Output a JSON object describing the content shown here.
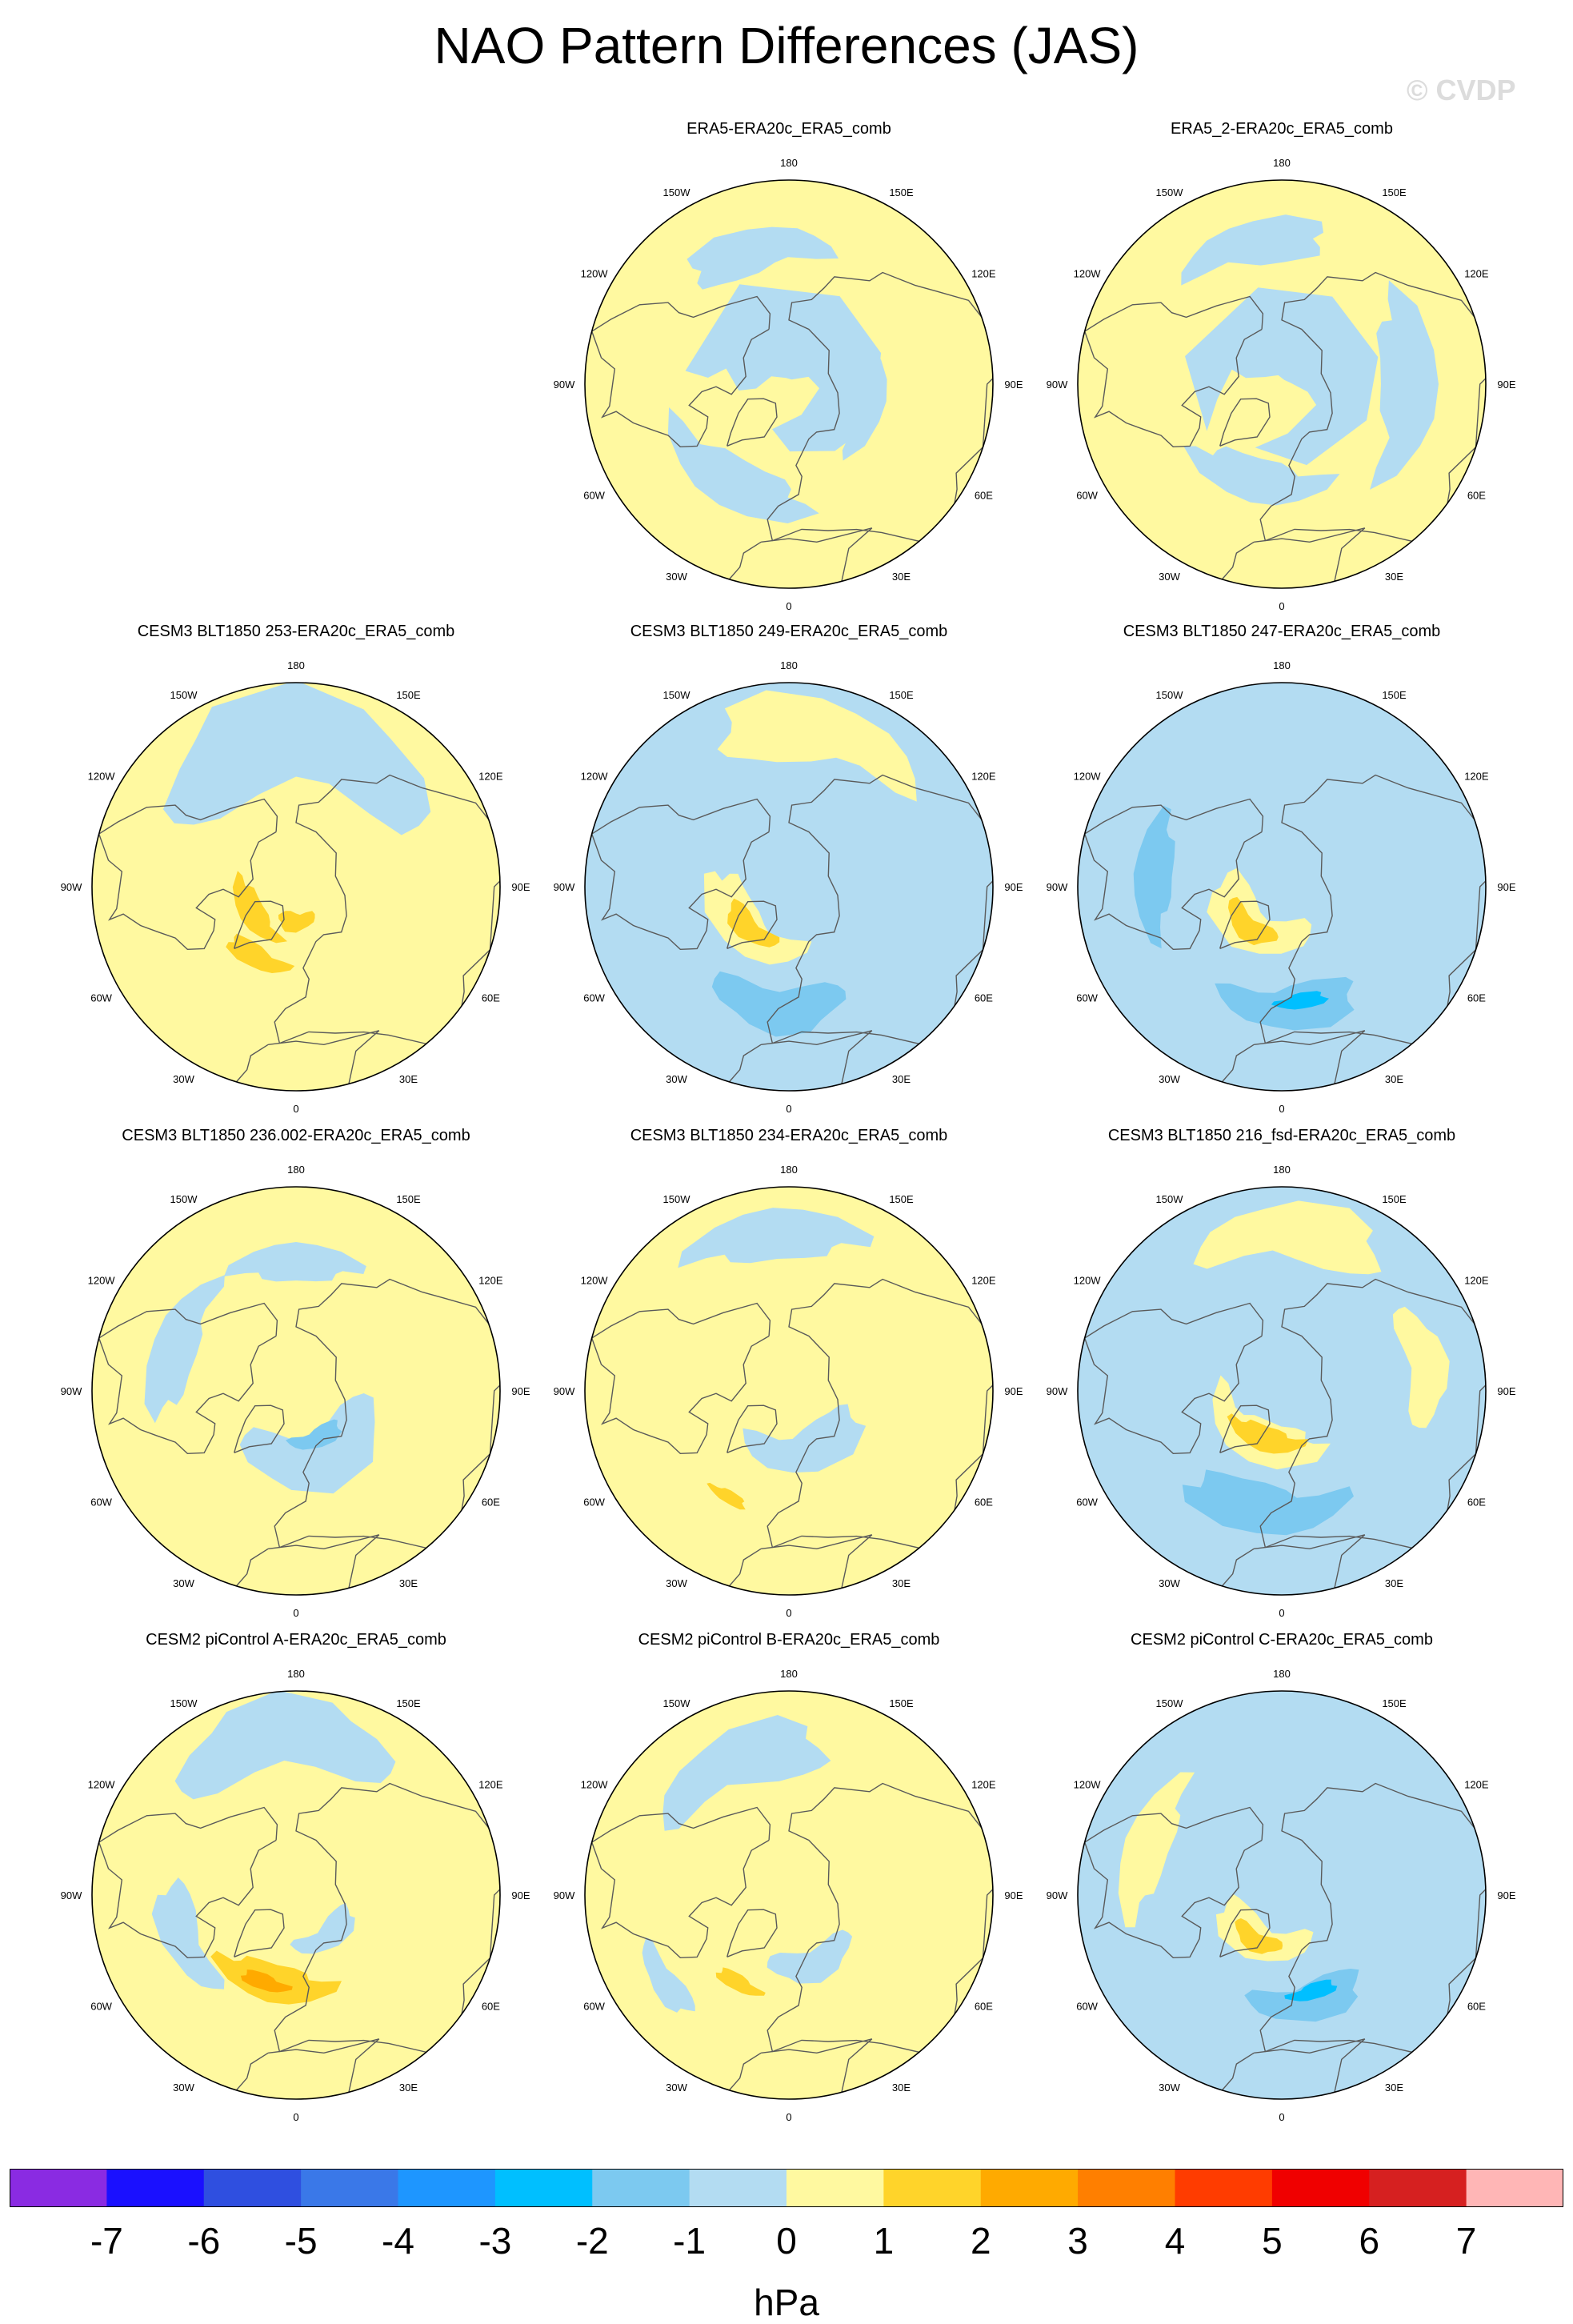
{
  "figure": {
    "title": "NAO Pattern Differences (JAS)",
    "watermark": "© CVDP"
  },
  "colors": {
    "land_outline": "#5a5a5a",
    "ocean_blank": "#ffffff",
    "neg_neutral": "#b3dcf2",
    "pos_neutral": "#fff9a0"
  },
  "panels": [
    {
      "id": "era5",
      "title": "ERA5-ERA20c_ERA5_comb",
      "row": 0,
      "col": 1,
      "dominant": "mixed",
      "blobs": [
        {
          "sign": "neg",
          "level": 1,
          "lat": 42,
          "lon": 195,
          "r": 14
        },
        {
          "sign": "neg",
          "level": 1,
          "lat": 50,
          "lon": 330,
          "r": 16
        },
        {
          "sign": "neg",
          "level": 1,
          "lat": 62,
          "lon": 80,
          "r": 12
        }
      ]
    },
    {
      "id": "era5_2",
      "title": "ERA5_2-ERA20c_ERA5_comb",
      "row": 0,
      "col": 2,
      "dominant": "mixed",
      "blobs": [
        {
          "sign": "neg",
          "level": 1,
          "lat": 45,
          "lon": 90,
          "r": 18
        },
        {
          "sign": "neg",
          "level": 1,
          "lat": 55,
          "lon": 345,
          "r": 14
        },
        {
          "sign": "neg",
          "level": 1,
          "lat": 40,
          "lon": 190,
          "r": 14
        }
      ]
    },
    {
      "id": "b253",
      "title": "CESM3 BLT1850 253-ERA20c_ERA5_comb",
      "row": 1,
      "col": 0,
      "dominant": "pos",
      "blobs": [
        {
          "sign": "pos",
          "level": 2,
          "lat": 72,
          "lon": 300,
          "r": 8
        },
        {
          "sign": "pos",
          "level": 2,
          "lat": 62,
          "lon": 330,
          "r": 7
        },
        {
          "sign": "pos",
          "level": 2,
          "lat": 78,
          "lon": 0,
          "r": 6
        },
        {
          "sign": "neg",
          "level": 1,
          "lat": 40,
          "lon": 180,
          "r": 30
        }
      ]
    },
    {
      "id": "b249",
      "title": "CESM3 BLT1850 249-ERA20c_ERA5_comb",
      "row": 1,
      "col": 1,
      "dominant": "neg",
      "blobs": [
        {
          "sign": "pos",
          "level": 1,
          "lat": 68,
          "lon": 310,
          "r": 14
        },
        {
          "sign": "pos",
          "level": 2,
          "lat": 70,
          "lon": 315,
          "r": 7
        },
        {
          "sign": "neg",
          "level": 2,
          "lat": 48,
          "lon": 355,
          "r": 14
        },
        {
          "sign": "pos",
          "level": 1,
          "lat": 35,
          "lon": 170,
          "r": 20
        }
      ]
    },
    {
      "id": "b247",
      "title": "CESM3 BLT1850 247-ERA20c_ERA5_comb",
      "row": 1,
      "col": 2,
      "dominant": "neg",
      "blobs": [
        {
          "sign": "pos",
          "level": 1,
          "lat": 72,
          "lon": 320,
          "r": 14
        },
        {
          "sign": "pos",
          "level": 2,
          "lat": 72,
          "lon": 320,
          "r": 7
        },
        {
          "sign": "neg",
          "level": 2,
          "lat": 48,
          "lon": 5,
          "r": 14
        },
        {
          "sign": "neg",
          "level": 3,
          "lat": 50,
          "lon": 10,
          "r": 5
        },
        {
          "sign": "neg",
          "level": 2,
          "lat": 45,
          "lon": 265,
          "r": 12
        }
      ]
    },
    {
      "id": "b236",
      "title": "CESM3 BLT1850 236.002-ERA20c_ERA5_comb",
      "row": 2,
      "col": 0,
      "dominant": "pos",
      "blobs": [
        {
          "sign": "neg",
          "level": 1,
          "lat": 65,
          "lon": 20,
          "r": 18
        },
        {
          "sign": "neg",
          "level": 2,
          "lat": 72,
          "lon": 25,
          "r": 6
        },
        {
          "sign": "neg",
          "level": 1,
          "lat": 45,
          "lon": 250,
          "r": 14
        },
        {
          "sign": "neg",
          "level": 1,
          "lat": 45,
          "lon": 180,
          "r": 12
        }
      ]
    },
    {
      "id": "b234",
      "title": "CESM3 BLT1850 234-ERA20c_ERA5_comb",
      "row": 2,
      "col": 1,
      "dominant": "pos",
      "blobs": [
        {
          "sign": "neg",
          "level": 1,
          "lat": 68,
          "lon": 20,
          "r": 14
        },
        {
          "sign": "pos",
          "level": 2,
          "lat": 48,
          "lon": 330,
          "r": 4
        },
        {
          "sign": "neg",
          "level": 1,
          "lat": 35,
          "lon": 185,
          "r": 16
        }
      ]
    },
    {
      "id": "b216",
      "title": "CESM3 BLT1850 216_fsd-ERA20c_ERA5_comb",
      "row": 2,
      "col": 2,
      "dominant": "neg",
      "blobs": [
        {
          "sign": "pos",
          "level": 1,
          "lat": 70,
          "lon": 335,
          "r": 14
        },
        {
          "sign": "pos",
          "level": 2,
          "lat": 72,
          "lon": 340,
          "r": 8
        },
        {
          "sign": "neg",
          "level": 2,
          "lat": 48,
          "lon": 350,
          "r": 16
        },
        {
          "sign": "pos",
          "level": 1,
          "lat": 35,
          "lon": 175,
          "r": 18
        },
        {
          "sign": "pos",
          "level": 1,
          "lat": 40,
          "lon": 100,
          "r": 12
        }
      ]
    },
    {
      "id": "picA",
      "title": "CESM2 piControl A-ERA20c_ERA5_comb",
      "row": 3,
      "col": 0,
      "dominant": "pos",
      "blobs": [
        {
          "sign": "pos",
          "level": 2,
          "lat": 58,
          "lon": 345,
          "r": 12
        },
        {
          "sign": "pos",
          "level": 3,
          "lat": 58,
          "lon": 340,
          "r": 5
        },
        {
          "sign": "neg",
          "level": 1,
          "lat": 48,
          "lon": 290,
          "r": 12
        },
        {
          "sign": "neg",
          "level": 1,
          "lat": 35,
          "lon": 185,
          "r": 22
        },
        {
          "sign": "neg",
          "level": 1,
          "lat": 72,
          "lon": 40,
          "r": 8
        }
      ]
    },
    {
      "id": "picB",
      "title": "CESM2 piControl B-ERA20c_ERA5_comb",
      "row": 3,
      "col": 1,
      "dominant": "pos",
      "blobs": [
        {
          "sign": "pos",
          "level": 2,
          "lat": 55,
          "lon": 330,
          "r": 5
        },
        {
          "sign": "neg",
          "level": 1,
          "lat": 40,
          "lon": 200,
          "r": 18
        },
        {
          "sign": "neg",
          "level": 1,
          "lat": 65,
          "lon": 20,
          "r": 10
        },
        {
          "sign": "neg",
          "level": 1,
          "lat": 38,
          "lon": 305,
          "r": 8
        }
      ]
    },
    {
      "id": "picC",
      "title": "CESM2 piControl C-ERA20c_ERA5_comb",
      "row": 3,
      "col": 2,
      "dominant": "neg",
      "blobs": [
        {
          "sign": "pos",
          "level": 1,
          "lat": 72,
          "lon": 330,
          "r": 12
        },
        {
          "sign": "pos",
          "level": 2,
          "lat": 72,
          "lon": 330,
          "r": 6
        },
        {
          "sign": "neg",
          "level": 2,
          "lat": 52,
          "lon": 15,
          "r": 12
        },
        {
          "sign": "neg",
          "level": 3,
          "lat": 55,
          "lon": 18,
          "r": 5
        },
        {
          "sign": "pos",
          "level": 1,
          "lat": 40,
          "lon": 250,
          "r": 14
        }
      ]
    }
  ],
  "map": {
    "lon_labels": [
      {
        "lon": 180,
        "text": "180"
      },
      {
        "lon": 150,
        "text": "150E"
      },
      {
        "lon": 120,
        "text": "120E"
      },
      {
        "lon": 90,
        "text": "90E"
      },
      {
        "lon": 60,
        "text": "60E"
      },
      {
        "lon": 30,
        "text": "30E"
      },
      {
        "lon": 0,
        "text": "0"
      },
      {
        "lon": 330,
        "text": "30W"
      },
      {
        "lon": 300,
        "text": "60W"
      },
      {
        "lon": 270,
        "text": "90W"
      },
      {
        "lon": 240,
        "text": "120W"
      },
      {
        "lon": 210,
        "text": "150W"
      }
    ]
  },
  "colorbar": {
    "unit": "hPa",
    "labels": [
      "-7",
      "-6",
      "-5",
      "-4",
      "-3",
      "-2",
      "-1",
      "0",
      "1",
      "2",
      "3",
      "4",
      "5",
      "6",
      "7"
    ],
    "colors": [
      "#8a2be2",
      "#1a10ff",
      "#2f4fe0",
      "#3a78e8",
      "#1e96ff",
      "#00bfff",
      "#7cc9f0",
      "#b3dcf2",
      "#fff9a0",
      "#ffd42a",
      "#ffaa00",
      "#ff7f00",
      "#ff3c00",
      "#f00000",
      "#d62020",
      "#ffb6b6"
    ]
  }
}
